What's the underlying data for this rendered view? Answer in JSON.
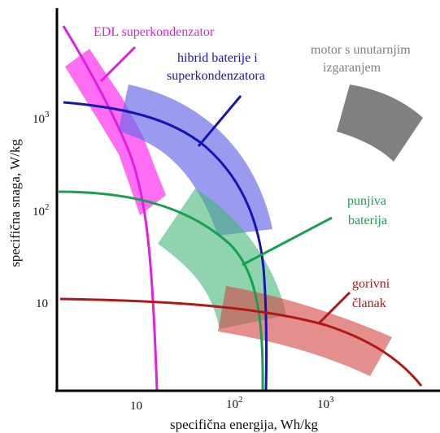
{
  "axes": {
    "x_title": "specifična energija, Wh/kg",
    "y_title": "specifična snaga, W/kg",
    "x_ticks": [
      {
        "base": "10",
        "exp": ""
      },
      {
        "base": "10",
        "exp": "2"
      },
      {
        "base": "10",
        "exp": "3"
      }
    ],
    "y_ticks": [
      {
        "base": "10",
        "exp": "3"
      },
      {
        "base": "10",
        "exp": "2"
      },
      {
        "base": "10",
        "exp": ""
      }
    ]
  },
  "labels": {
    "edl": "EDL superkondenzator",
    "hybrid_line1": "hibrid baterije i",
    "hybrid_line2": "superkondenzatora",
    "engine_line1": "motor s unutarnjim",
    "engine_line2": "izgaranjem",
    "battery_line1": "punjiva",
    "battery_line2": "baterija",
    "fuelcell_line1": "gorivni",
    "fuelcell_line2": "članak"
  },
  "colors": {
    "edl": "#e020e0",
    "edl_band": "#ff55ee",
    "hybrid": "#1515b0",
    "hybrid_band": "#7777ee",
    "battery": "#18a050",
    "battery_band": "#55c088",
    "fuelcell": "#b01818",
    "fuelcell_band": "#dd6666",
    "engine": "#808080",
    "engine_label": "#808080"
  }
}
